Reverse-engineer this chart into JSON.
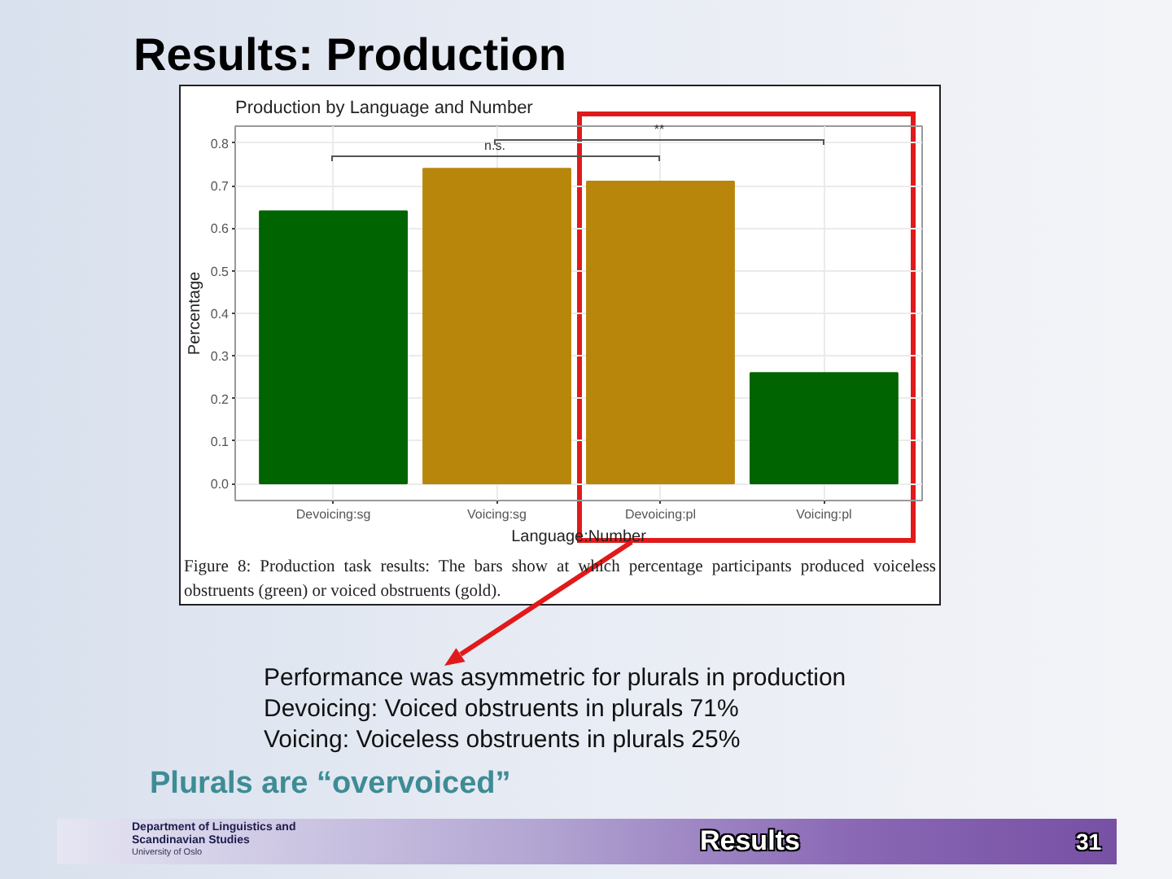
{
  "chart_data": {
    "type": "bar",
    "title": "Results: Production",
    "subtitle": "Production by Language and Number",
    "xlabel": "Language:Number",
    "ylabel": "Percentage",
    "categories": [
      "Devoicing:sg",
      "Voicing:sg",
      "Devoicing:pl",
      "Voicing:pl"
    ],
    "values": [
      0.64,
      0.74,
      0.71,
      0.26
    ],
    "colors": [
      "#006400",
      "#b8860b",
      "#b8860b",
      "#006400"
    ],
    "ylim": [
      -0.04,
      0.84
    ],
    "yticks": [
      {
        "value": 0,
        "label": "0.0"
      },
      0.1,
      0.2,
      0.3,
      0.4,
      0.5,
      0.6,
      0.7,
      0.8
    ],
    "grid": true,
    "annotations": [
      "n.s.",
      "**",
      "Figure 8: Production task results: The bars show at which percentage participants produced voiceless obstruents (green) or voiced obstruents (gold).",
      "Performance was asymmetric for plurals in production",
      "Devoicing: Voiced obstruents in plurals 71%",
      "Voicing: Voiceless obstruents in plurals 25%",
      "Plurals are “overvoiced”",
      "Department of Linguistics and Scandinavian Studies",
      "University of Oslo",
      "Results",
      "31"
    ]
  }
}
